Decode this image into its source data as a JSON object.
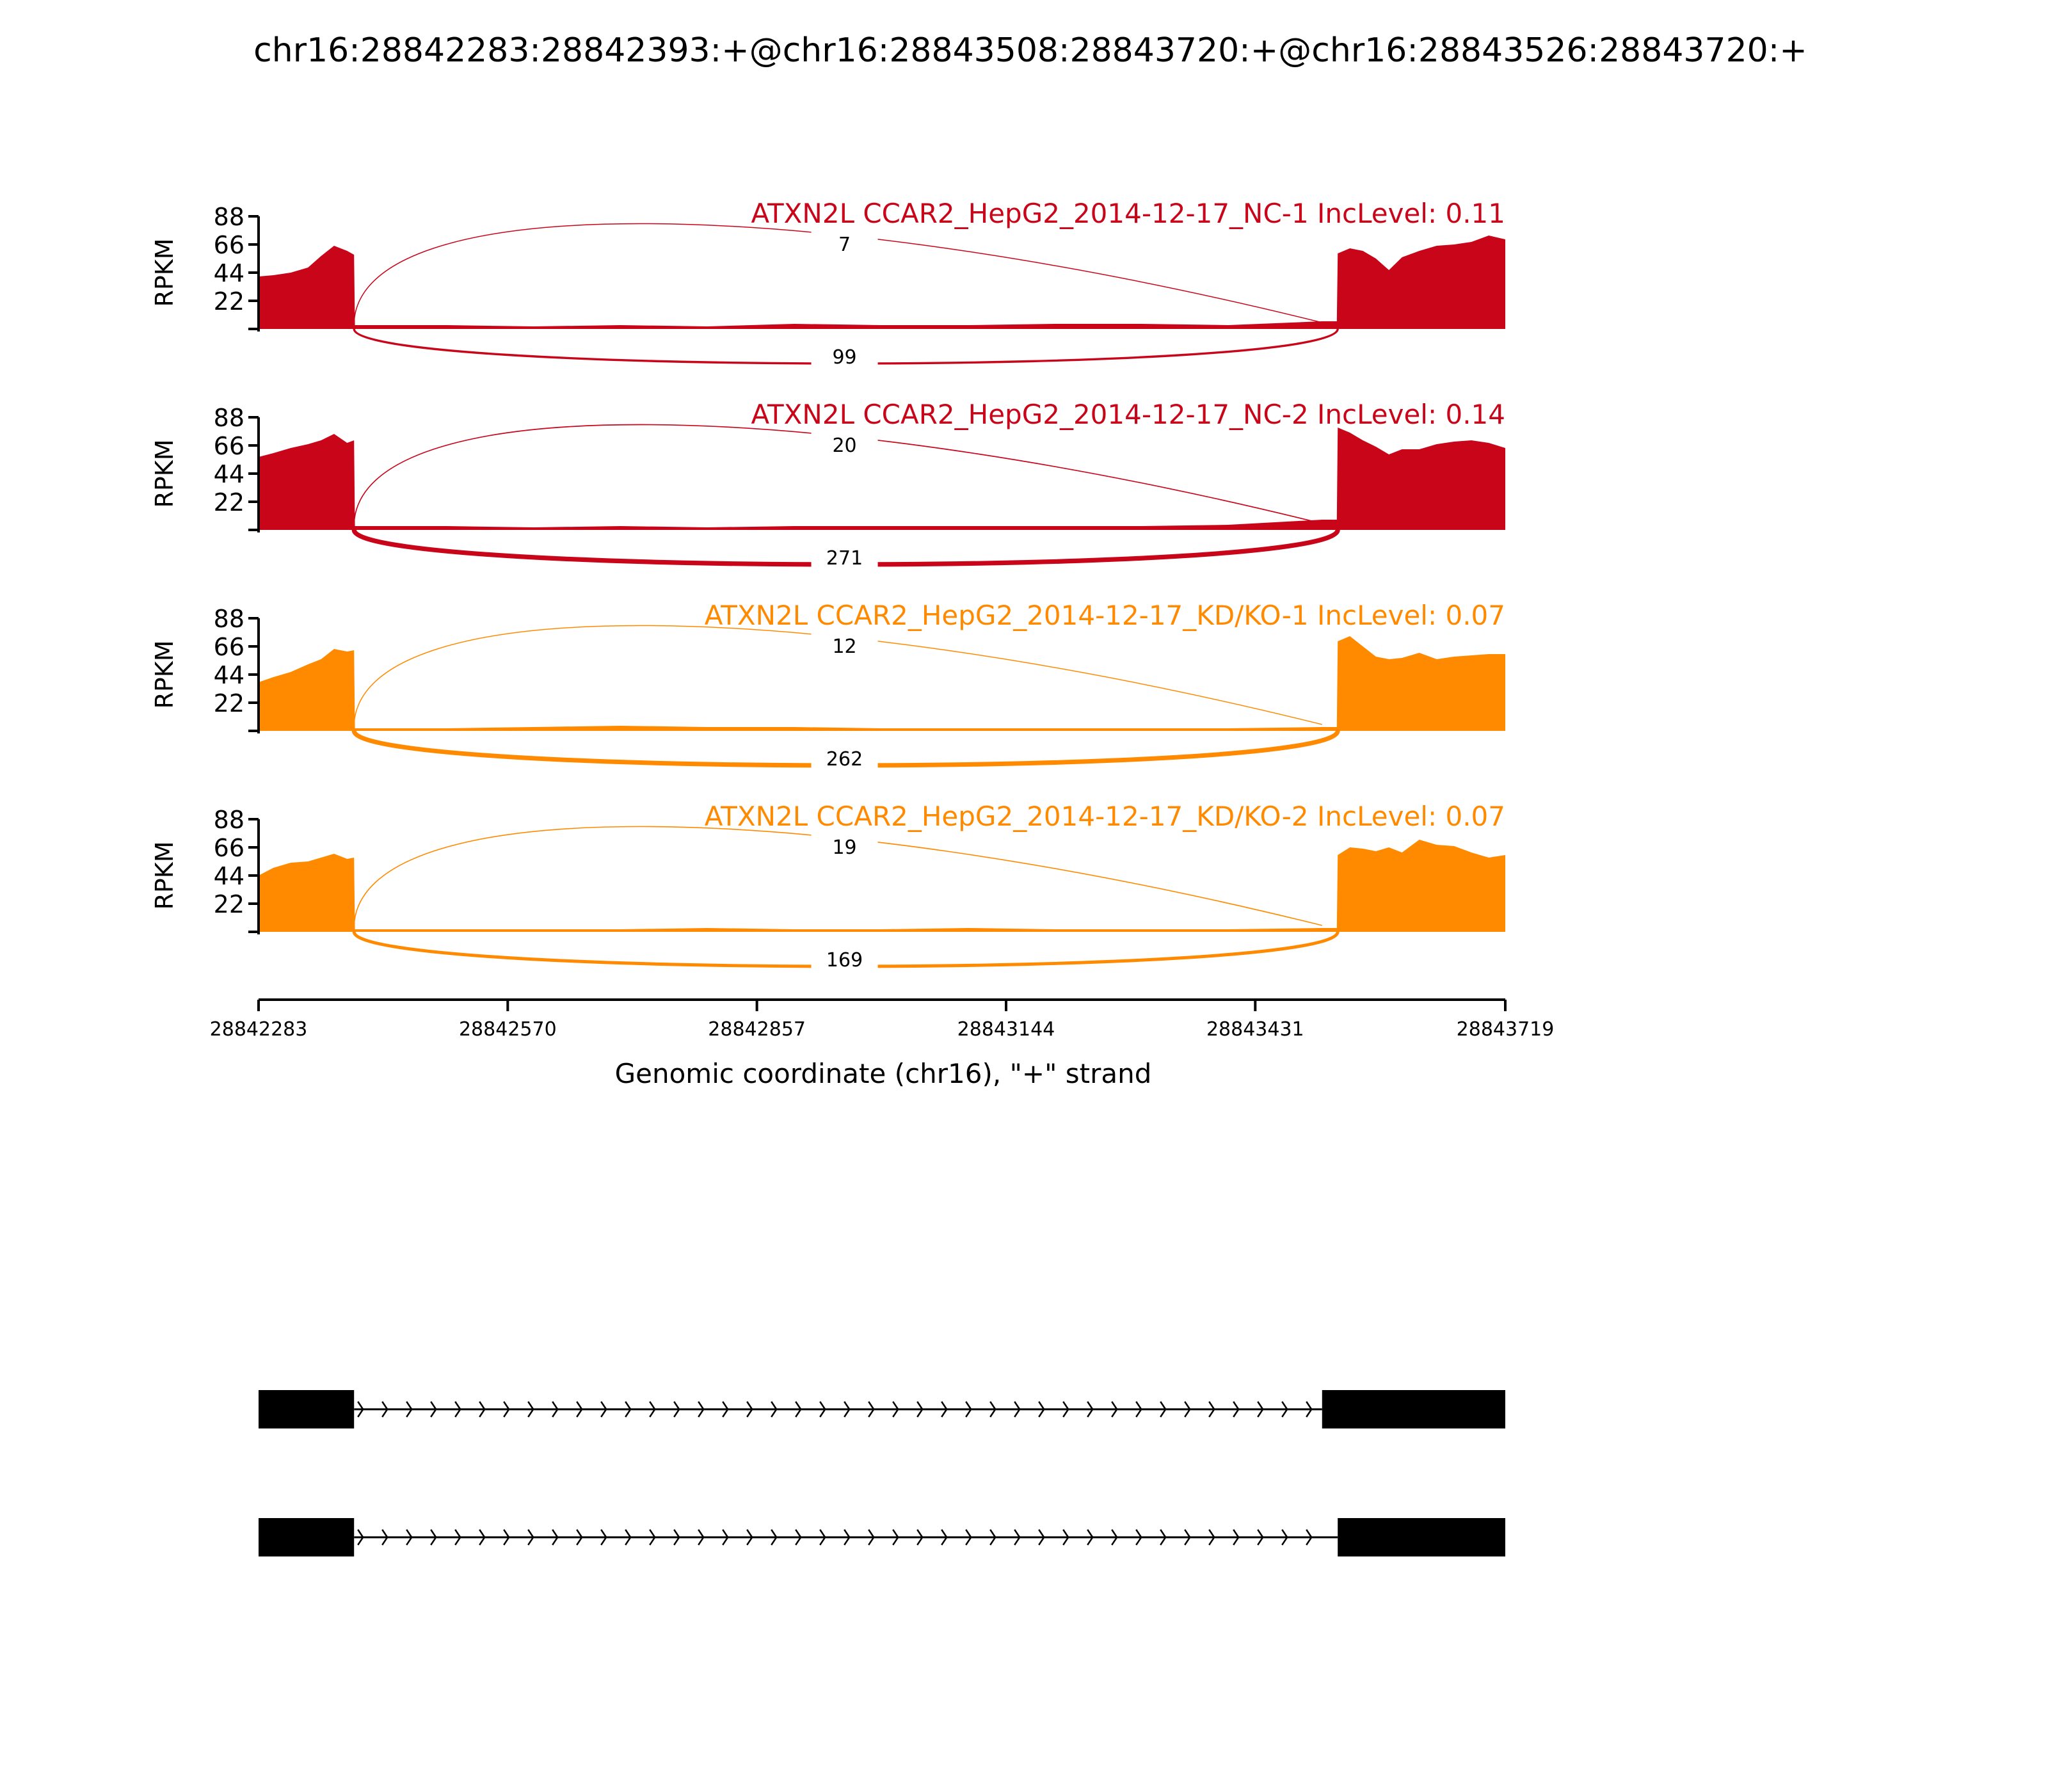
{
  "chart_data": {
    "type": "area",
    "title": "chr16:28842283:28842393:+@chr16:28843508:28843720:+@chr16:28843526:28843720:+",
    "xlabel": "Genomic coordinate (chr16), \"+\" strand",
    "ylabel": "RPKM",
    "xlim": [
      28842283,
      28843719
    ],
    "x_ticks": [
      "28842283",
      "28842570",
      "28842857",
      "28843144",
      "28843431",
      "28843719"
    ],
    "ylim": [
      0,
      88
    ],
    "y_ticks": [
      "88",
      "66",
      "44",
      "22"
    ],
    "grid": false,
    "exon_regions": [
      {
        "start": 28842283,
        "end": 28842393
      },
      {
        "start": 28843526,
        "end": 28843719
      }
    ],
    "tracks": [
      {
        "name": "ATXN2L CCAR2_HepG2_2014-12-17_NC-1 IncLevel: 0.11",
        "color": "#c9051a",
        "junctions": [
          {
            "from": 28842393,
            "to": 28843508,
            "count": "7",
            "side": "top"
          },
          {
            "from": 28842393,
            "to": 28843526,
            "count": "99",
            "side": "bottom"
          }
        ],
        "coverage": {
          "x": [
            28842283,
            28842300,
            28842320,
            28842340,
            28842355,
            28842370,
            28842385,
            28842393,
            28842394,
            28842500,
            28842600,
            28842700,
            28842800,
            28842900,
            28843000,
            28843100,
            28843200,
            28843300,
            28843400,
            28843508,
            28843525,
            28843526,
            28843540,
            28843555,
            28843570,
            28843585,
            28843600,
            28843620,
            28843640,
            28843660,
            28843680,
            28843700,
            28843719
          ],
          "y": [
            41,
            42,
            44,
            48,
            57,
            65,
            61,
            58,
            3,
            3,
            2,
            3,
            2,
            4,
            3,
            3,
            4,
            4,
            3,
            6,
            6,
            59,
            63,
            61,
            55,
            46,
            56,
            61,
            65,
            66,
            68,
            73,
            70
          ]
        }
      },
      {
        "name": "ATXN2L CCAR2_HepG2_2014-12-17_NC-2 IncLevel: 0.14",
        "color": "#c9051a",
        "junctions": [
          {
            "from": 28842393,
            "to": 28843508,
            "count": "20",
            "side": "top"
          },
          {
            "from": 28842393,
            "to": 28843526,
            "count": "271",
            "side": "bottom"
          }
        ],
        "coverage": {
          "x": [
            28842283,
            28842300,
            28842320,
            28842340,
            28842355,
            28842370,
            28842385,
            28842393,
            28842394,
            28842500,
            28842600,
            28842700,
            28842800,
            28842900,
            28843000,
            28843100,
            28843200,
            28843300,
            28843400,
            28843508,
            28843525,
            28843526,
            28843540,
            28843555,
            28843570,
            28843585,
            28843600,
            28843620,
            28843640,
            28843660,
            28843680,
            28843700,
            28843719
          ],
          "y": [
            57,
            60,
            64,
            67,
            70,
            75,
            68,
            70,
            3,
            3,
            2,
            3,
            2,
            3,
            3,
            3,
            3,
            3,
            4,
            8,
            8,
            80,
            76,
            70,
            65,
            59,
            63,
            63,
            67,
            69,
            70,
            68,
            64
          ]
        }
      },
      {
        "name": "ATXN2L CCAR2_HepG2_2014-12-17_KD/KO-1 IncLevel: 0.07",
        "color": "#ff8a00",
        "junctions": [
          {
            "from": 28842393,
            "to": 28843508,
            "count": "12",
            "side": "top"
          },
          {
            "from": 28842393,
            "to": 28843526,
            "count": "262",
            "side": "bottom"
          }
        ],
        "coverage": {
          "x": [
            28842283,
            28842300,
            28842320,
            28842340,
            28842355,
            28842370,
            28842385,
            28842393,
            28842394,
            28842500,
            28842600,
            28842700,
            28842800,
            28842900,
            28843000,
            28843100,
            28843200,
            28843300,
            28843400,
            28843508,
            28843525,
            28843526,
            28843540,
            28843555,
            28843570,
            28843585,
            28843600,
            28843620,
            28843640,
            28843660,
            28843680,
            28843700,
            28843719
          ],
          "y": [
            38,
            42,
            46,
            52,
            56,
            64,
            62,
            63,
            2,
            2,
            3,
            4,
            3,
            3,
            2,
            2,
            2,
            2,
            2,
            3,
            3,
            70,
            74,
            66,
            58,
            56,
            57,
            61,
            56,
            58,
            59,
            60,
            60
          ]
        }
      },
      {
        "name": "ATXN2L CCAR2_HepG2_2014-12-17_KD/KO-2 IncLevel: 0.07",
        "color": "#ff8a00",
        "junctions": [
          {
            "from": 28842393,
            "to": 28843508,
            "count": "19",
            "side": "top"
          },
          {
            "from": 28842393,
            "to": 28843526,
            "count": "169",
            "side": "bottom"
          }
        ],
        "coverage": {
          "x": [
            28842283,
            28842300,
            28842320,
            28842340,
            28842355,
            28842370,
            28842385,
            28842393,
            28842394,
            28842500,
            28842600,
            28842700,
            28842800,
            28842900,
            28843000,
            28843100,
            28843200,
            28843300,
            28843400,
            28843508,
            28843525,
            28843526,
            28843540,
            28843555,
            28843570,
            28843585,
            28843600,
            28843620,
            28843640,
            28843660,
            28843680,
            28843700,
            28843719
          ],
          "y": [
            44,
            50,
            54,
            55,
            58,
            61,
            57,
            58,
            2,
            2,
            2,
            2,
            3,
            2,
            2,
            3,
            2,
            2,
            2,
            3,
            3,
            60,
            66,
            65,
            63,
            66,
            62,
            72,
            68,
            67,
            62,
            58,
            60
          ]
        }
      }
    ],
    "gene_models": [
      {
        "exons": [
          {
            "start": 28842283,
            "end": 28842393
          },
          {
            "start": 28843508,
            "end": 28843719
          }
        ],
        "strand": "+"
      },
      {
        "exons": [
          {
            "start": 28842283,
            "end": 28842393
          },
          {
            "start": 28843526,
            "end": 28843719
          }
        ],
        "strand": "+"
      }
    ]
  }
}
